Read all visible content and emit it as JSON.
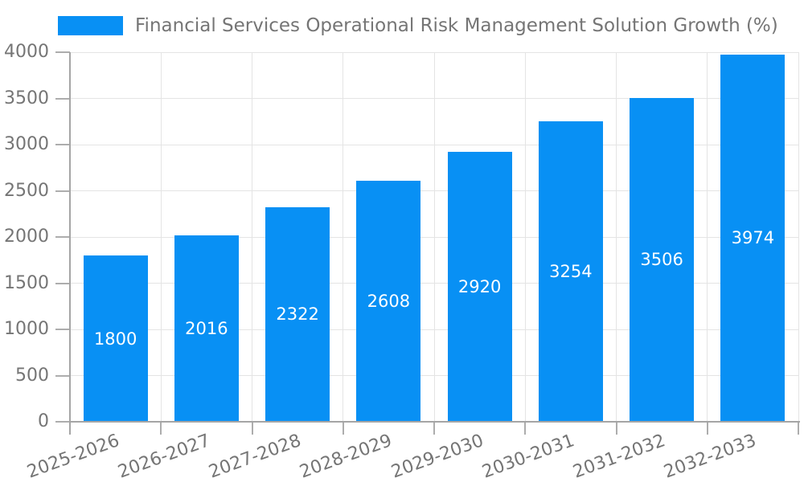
{
  "chart_data": {
    "type": "bar",
    "title": "Financial Services Operational Risk Management Solution Growth (%)",
    "categories": [
      "2025-2026",
      "2026-2027",
      "2027-2028",
      "2028-2029",
      "2029-2030",
      "2030-2031",
      "2031-2032",
      "2032-2033"
    ],
    "values": [
      1800,
      2016,
      2322,
      2608,
      2920,
      3254,
      3506,
      3974
    ],
    "xlabel": "",
    "ylabel": "",
    "ylim": [
      0,
      4000
    ],
    "yticks": [
      0,
      500,
      1000,
      1500,
      2000,
      2500,
      3000,
      3500,
      4000
    ],
    "grid": true,
    "legend_position": "top",
    "x_tick_rotation_deg": -20,
    "bar_color": "#0890F4",
    "value_label_color": "#ffffff",
    "axis_text_color": "#757575",
    "grid_color": "#e4e4e4",
    "axis_line_color": "#a5a5a5",
    "tick_color": "#adadad"
  }
}
